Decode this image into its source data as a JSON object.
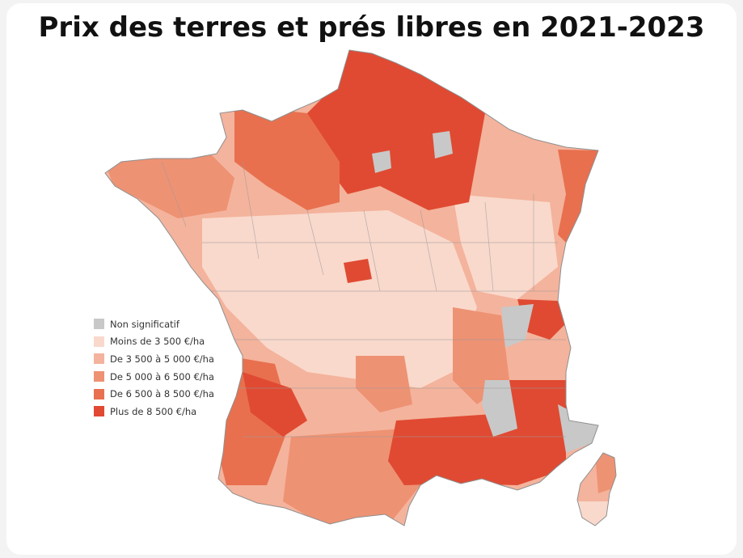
{
  "title": "Prix des terres et prés libres en 2021-2023",
  "legend": [
    {
      "label": "Non significatif",
      "color": "#c8c8c8"
    },
    {
      "label": "Moins de 3 500 €/ha",
      "color": "#f9d9cc"
    },
    {
      "label": "De 3 500 à 5 000 €/ha",
      "color": "#f4b39c"
    },
    {
      "label": "De 5 000 à 6 500 €/ha",
      "color": "#ee9274"
    },
    {
      "label": "De 6 500 à 8 500 €/ha",
      "color": "#e8704f"
    },
    {
      "label": "Plus de 8 500 €/ha",
      "color": "#e04a32"
    }
  ]
}
